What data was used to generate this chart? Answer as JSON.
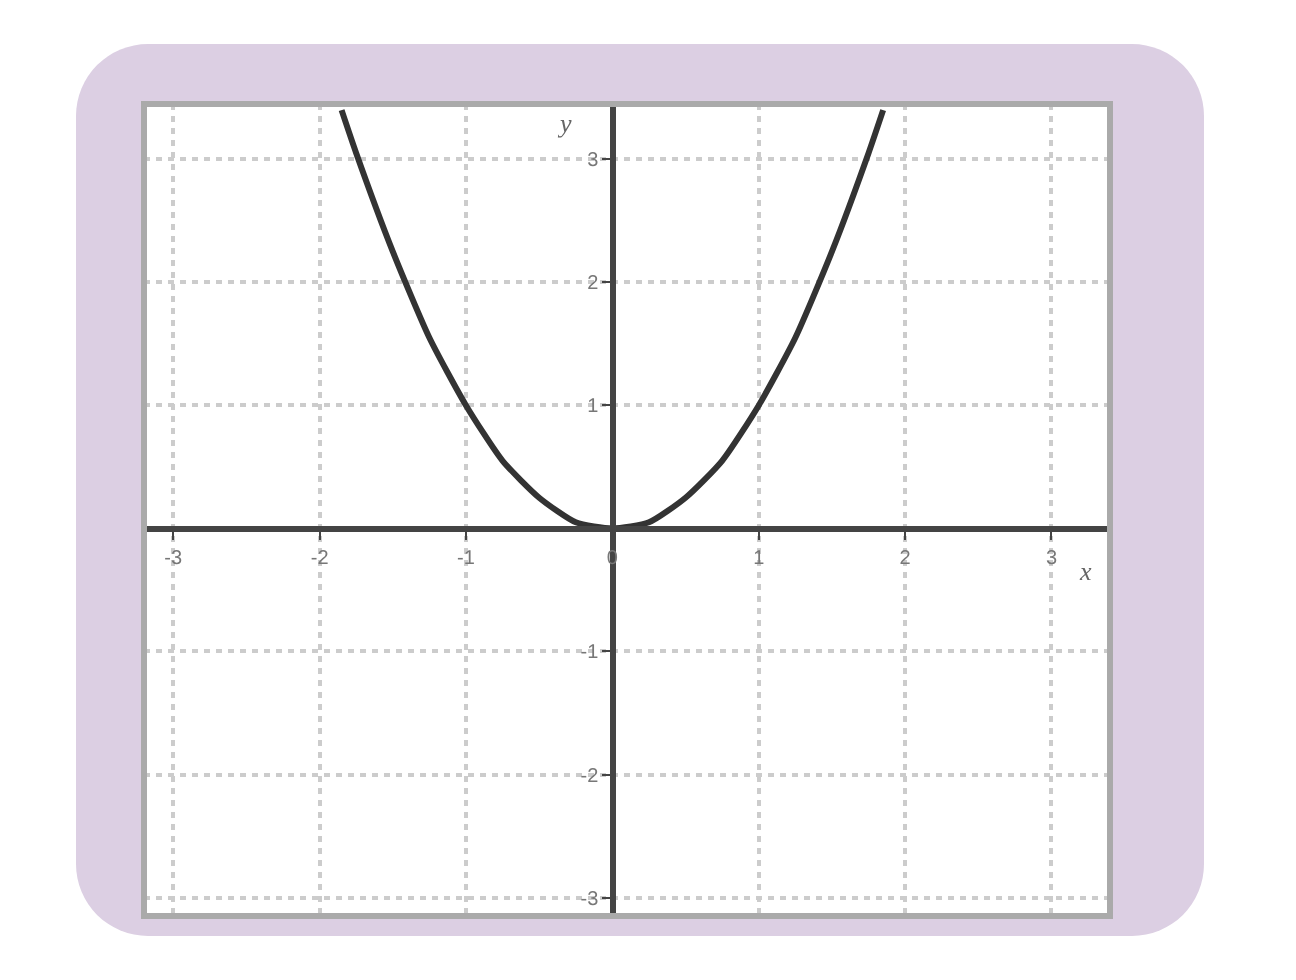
{
  "chart_data": {
    "type": "line",
    "xlabel": "x",
    "ylabel": "y",
    "x": [
      -1.85,
      -1.75,
      -1.5,
      -1.25,
      -1,
      -0.75,
      -0.5,
      -0.25,
      0,
      0.25,
      0.5,
      0.75,
      1,
      1.25,
      1.5,
      1.75,
      1.85
    ],
    "series": [
      {
        "color": "#333333",
        "values": [
          3.4,
          3.05,
          2.25,
          1.55,
          1,
          0.55,
          0.25,
          0.05,
          0,
          0.05,
          0.25,
          0.55,
          1,
          1.55,
          2.25,
          3.05,
          3.4
        ]
      }
    ],
    "xlim": [
      -3.2,
      3.4
    ],
    "ylim": [
      -3.15,
      3.45
    ],
    "xticks": [
      -3,
      -2,
      -1,
      0,
      1,
      2,
      3
    ],
    "yticks": [
      -3,
      -2,
      -1,
      1,
      2,
      3
    ],
    "grid": true,
    "marker": "none",
    "line_style": "solid"
  }
}
